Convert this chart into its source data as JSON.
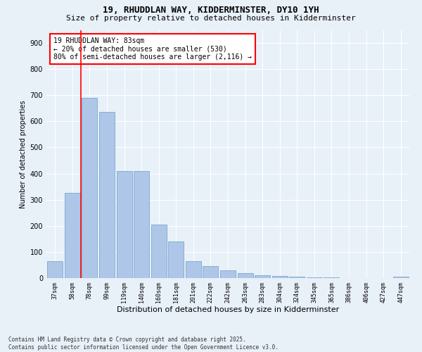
{
  "title1": "19, RHUDDLAN WAY, KIDDERMINSTER, DY10 1YH",
  "title2": "Size of property relative to detached houses in Kidderminster",
  "xlabel": "Distribution of detached houses by size in Kidderminster",
  "ylabel": "Number of detached properties",
  "categories": [
    "37sqm",
    "58sqm",
    "78sqm",
    "99sqm",
    "119sqm",
    "140sqm",
    "160sqm",
    "181sqm",
    "201sqm",
    "222sqm",
    "242sqm",
    "263sqm",
    "283sqm",
    "304sqm",
    "324sqm",
    "345sqm",
    "365sqm",
    "386sqm",
    "406sqm",
    "427sqm",
    "447sqm"
  ],
  "values": [
    65,
    325,
    690,
    635,
    410,
    410,
    205,
    140,
    65,
    45,
    30,
    20,
    10,
    8,
    5,
    3,
    2,
    1,
    1,
    1,
    5
  ],
  "bar_color": "#aec6e8",
  "bar_edge_color": "#7ba7cc",
  "background_color": "#e8f0f8",
  "grid_color": "#ffffff",
  "red_line_index": 2,
  "annotation_title": "19 RHUDDLAN WAY: 83sqm",
  "annotation_line1": "← 20% of detached houses are smaller (530)",
  "annotation_line2": "80% of semi-detached houses are larger (2,116) →",
  "footer1": "Contains HM Land Registry data © Crown copyright and database right 2025.",
  "footer2": "Contains public sector information licensed under the Open Government Licence v3.0.",
  "ylim": [
    0,
    950
  ],
  "yticks": [
    0,
    100,
    200,
    300,
    400,
    500,
    600,
    700,
    800,
    900
  ],
  "title1_fontsize": 9,
  "title2_fontsize": 8,
  "xlabel_fontsize": 8,
  "ylabel_fontsize": 7,
  "xtick_fontsize": 6,
  "ytick_fontsize": 7,
  "annotation_fontsize": 7,
  "footer_fontsize": 5.5
}
